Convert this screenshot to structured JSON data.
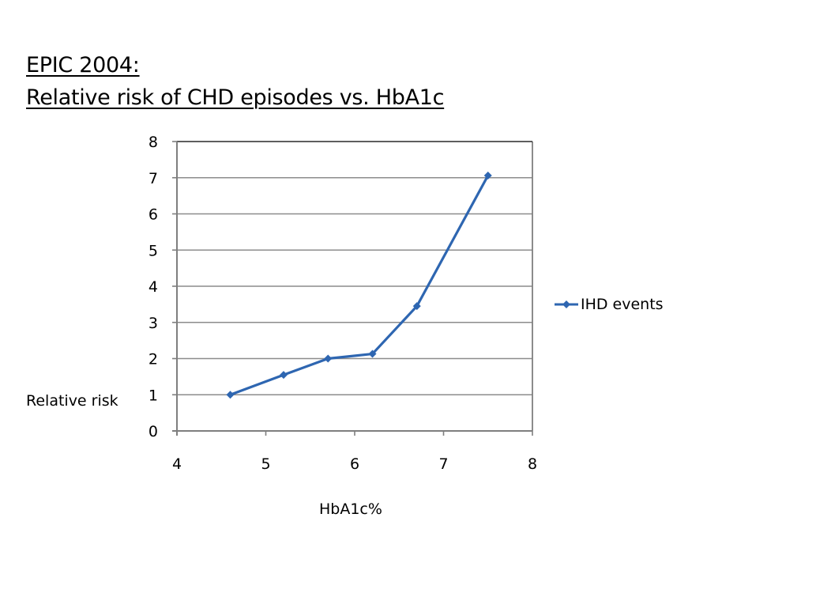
{
  "slide": {
    "title_line1": "EPIC 2004:",
    "title_line2": "Relative risk of CHD episodes vs. HbA1c"
  },
  "colors": {
    "series": "#2E66B1",
    "gridline": "#8C8C8C",
    "axis": "#7F7F7F",
    "background": "#FFFFFF"
  },
  "chart_data": {
    "type": "scatter",
    "subtype": "scatter-with-straight-lines-and-markers",
    "title": "EPIC 2004: Relative risk of CHD episodes vs. HbA1c",
    "xlabel": "HbA1c%",
    "ylabel": "Relative risk",
    "xlim": [
      4,
      8
    ],
    "ylim": [
      0,
      8
    ],
    "xticks": [
      4,
      5,
      6,
      7,
      8
    ],
    "yticks": [
      0,
      1,
      2,
      3,
      4,
      5,
      6,
      7,
      8
    ],
    "grid": {
      "horizontal": true,
      "vertical": false
    },
    "legend_position": "right",
    "series": [
      {
        "name": "IHD events",
        "marker": "diamond",
        "color": "#2E66B1",
        "x": [
          4.6,
          5.2,
          5.7,
          6.2,
          6.7,
          7.5
        ],
        "y": [
          1.0,
          1.55,
          2.0,
          2.13,
          3.45,
          7.06
        ]
      }
    ]
  }
}
